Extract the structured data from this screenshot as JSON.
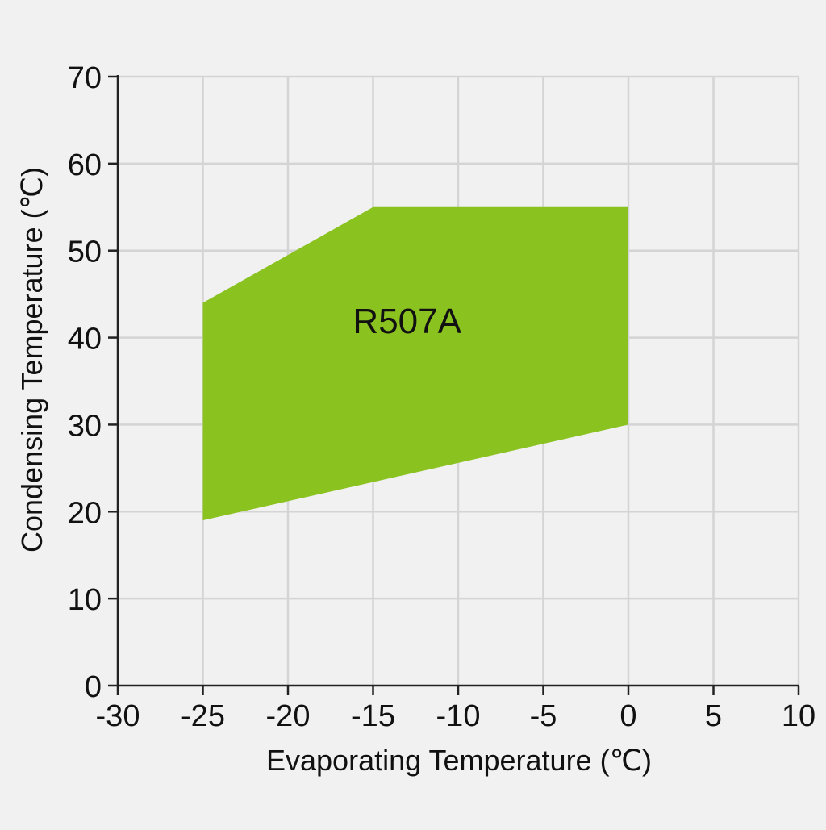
{
  "chart_data": {
    "type": "area",
    "title": "",
    "xlabel": "Evaporating Temperature  (℃)",
    "ylabel": "Condensing Temperature (℃)",
    "xlim": [
      -30,
      10
    ],
    "ylim": [
      0,
      70
    ],
    "xticks": [
      -30,
      -25,
      -20,
      -15,
      -10,
      -5,
      0,
      5,
      10
    ],
    "yticks": [
      0,
      10,
      20,
      30,
      40,
      50,
      60,
      70
    ],
    "grid": true,
    "series": [
      {
        "name": "R507A",
        "color": "#8ac220",
        "polygon": [
          {
            "x": -25,
            "y": 44
          },
          {
            "x": -15,
            "y": 55
          },
          {
            "x": 0,
            "y": 55
          },
          {
            "x": 0,
            "y": 30
          },
          {
            "x": -25,
            "y": 19
          }
        ],
        "label_at": {
          "x": -13,
          "y": 40.5
        }
      }
    ]
  }
}
